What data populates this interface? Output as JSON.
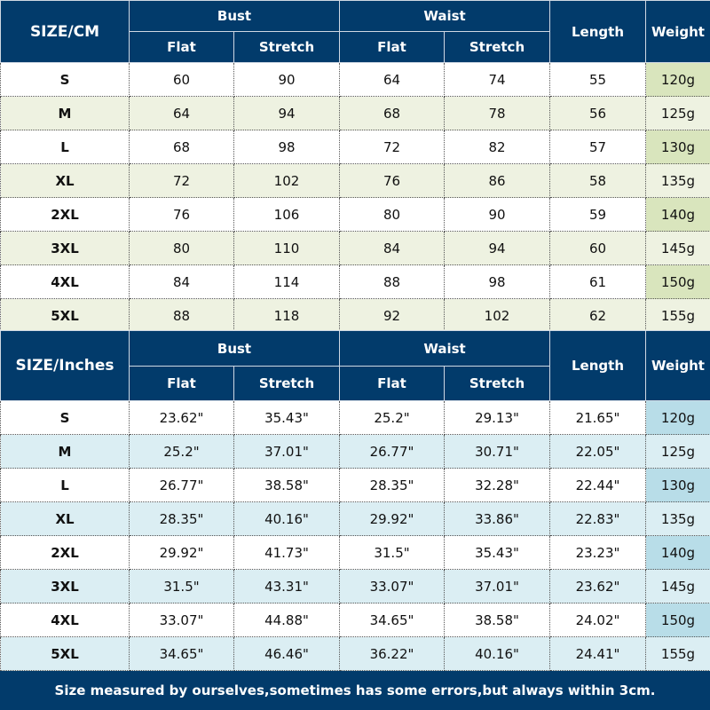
{
  "cm_table": {
    "size_label": "SIZE/CM",
    "groups": {
      "bust": "Bust",
      "waist": "Waist"
    },
    "sub": {
      "flat": "Flat",
      "stretch": "Stretch",
      "flat2": "Flat",
      "stretch2": "Stretch"
    },
    "length": "Length",
    "weight": "Weight",
    "rows": [
      [
        "S",
        "60",
        "90",
        "64",
        "74",
        "55",
        "120g"
      ],
      [
        "M",
        "64",
        "94",
        "68",
        "78",
        "56",
        "125g"
      ],
      [
        "L",
        "68",
        "98",
        "72",
        "82",
        "57",
        "130g"
      ],
      [
        "XL",
        "72",
        "102",
        "76",
        "86",
        "58",
        "135g"
      ],
      [
        "2XL",
        "76",
        "106",
        "80",
        "90",
        "59",
        "140g"
      ],
      [
        "3XL",
        "80",
        "110",
        "84",
        "94",
        "60",
        "145g"
      ],
      [
        "4XL",
        "84",
        "114",
        "88",
        "98",
        "61",
        "150g"
      ],
      [
        "5XL",
        "88",
        "118",
        "92",
        "102",
        "62",
        "155g"
      ]
    ]
  },
  "inch_table": {
    "size_label": "SIZE/Inches",
    "groups": {
      "bust": "Bust",
      "waist": "Waist"
    },
    "sub": {
      "flat": "Flat",
      "stretch": "Stretch",
      "flat2": "Flat",
      "stretch2": "Stretch"
    },
    "length": "Length",
    "weight": "Weight",
    "rows": [
      [
        "S",
        "23.62\"",
        "35.43\"",
        "25.2\"",
        "29.13\"",
        "21.65\"",
        "120g"
      ],
      [
        "M",
        "25.2\"",
        "37.01\"",
        "26.77\"",
        "30.71\"",
        "22.05\"",
        "125g"
      ],
      [
        "L",
        "26.77\"",
        "38.58\"",
        "28.35\"",
        "32.28\"",
        "22.44\"",
        "130g"
      ],
      [
        "XL",
        "28.35\"",
        "40.16\"",
        "29.92\"",
        "33.86\"",
        "22.83\"",
        "135g"
      ],
      [
        "2XL",
        "29.92\"",
        "41.73\"",
        "31.5\"",
        "35.43\"",
        "23.23\"",
        "140g"
      ],
      [
        "3XL",
        "31.5\"",
        "43.31\"",
        "33.07\"",
        "37.01\"",
        "23.62\"",
        "145g"
      ],
      [
        "4XL",
        "33.07\"",
        "44.88\"",
        "34.65\"",
        "38.58\"",
        "24.02\"",
        "150g"
      ],
      [
        "5XL",
        "34.65\"",
        "46.46\"",
        "36.22\"",
        "40.16\"",
        "24.41\"",
        "155g"
      ]
    ]
  },
  "footer": "Size measured by ourselves,sometimes has some errors,but always within 3cm."
}
